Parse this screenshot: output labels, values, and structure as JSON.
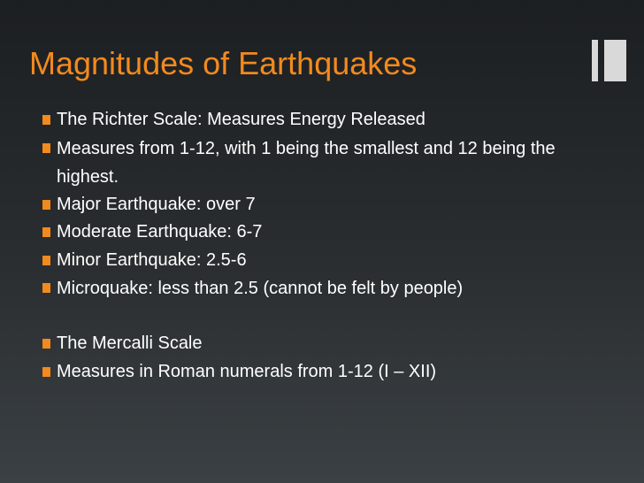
{
  "slide": {
    "title": "Magnitudes of Earthquakes",
    "accent_color": "#f28a1e",
    "text_color": "#ffffff",
    "bullets": [
      "The Richter Scale: Measures Energy Released",
      "Measures from 1-12, with 1 being the smallest and 12 being the highest.",
      "Major Earthquake: over 7",
      "Moderate Earthquake: 6-7",
      "Minor Earthquake: 2.5-6",
      "Microquake: less than 2.5 (cannot be felt by people)",
      "The Mercalli Scale",
      "Measures in Roman numerals from 1-12 (I – XII)"
    ]
  }
}
